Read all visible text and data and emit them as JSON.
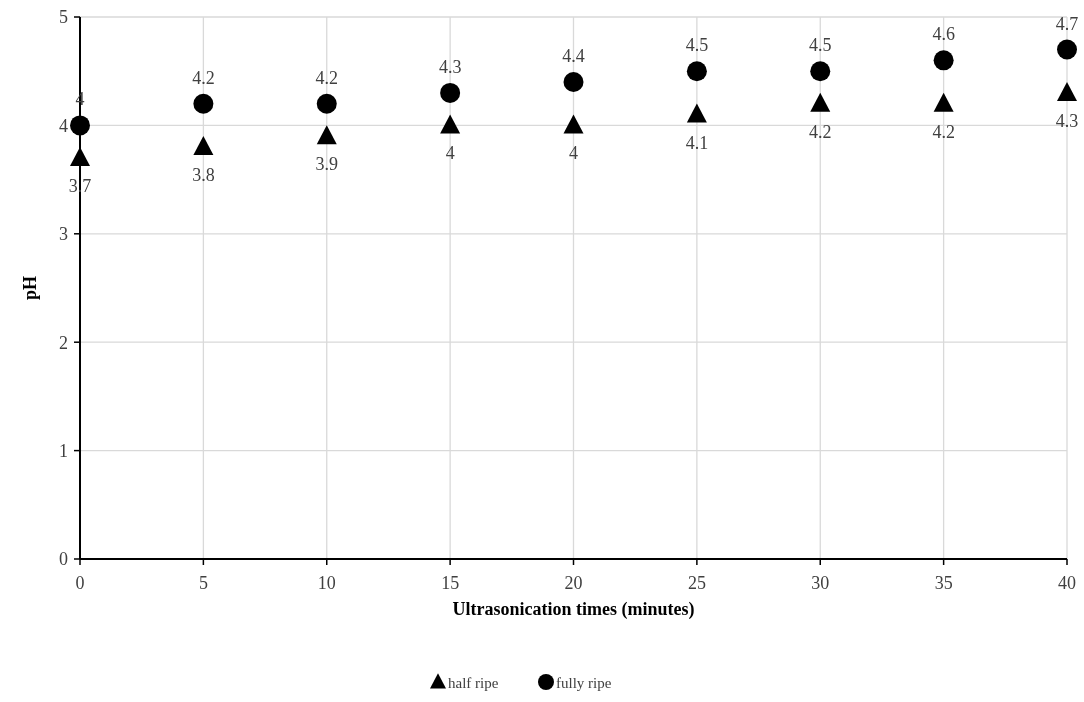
{
  "chart_data": {
    "type": "scatter",
    "xlabel": "Ultrasonication times (minutes)",
    "ylabel": "pH",
    "x": [
      0,
      5,
      10,
      15,
      20,
      25,
      30,
      35,
      40
    ],
    "series": [
      {
        "name": "half ripe",
        "color": "#000000",
        "marker": "triangle",
        "values": [
          3.7,
          3.8,
          3.9,
          4,
          4,
          4.1,
          4.2,
          4.2,
          4.3
        ]
      },
      {
        "name": "fully ripe",
        "color": "#000000",
        "marker": "circle",
        "values": [
          4,
          4.2,
          4.2,
          4.3,
          4.4,
          4.5,
          4.5,
          4.6,
          4.7
        ]
      }
    ],
    "xlim": [
      0,
      40
    ],
    "xticks": [
      0,
      5,
      10,
      15,
      20,
      25,
      30,
      35,
      40
    ],
    "ylim": [
      0,
      5
    ],
    "yticks": [
      0,
      1,
      2,
      3,
      4,
      5
    ],
    "grid": true,
    "legend": "bottom",
    "data_labels": true
  }
}
